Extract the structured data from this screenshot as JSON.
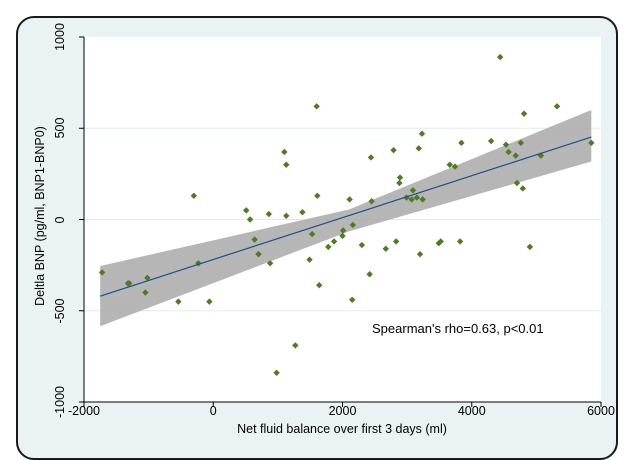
{
  "chart_data": {
    "type": "scatter",
    "xlabel": "Net fluid balance over first 3 days (ml)",
    "ylabel": "Deltla BNP (pg/ml, BNP1-BNP0)",
    "xlim": [
      -2000,
      6000
    ],
    "ylim": [
      -1000,
      1000
    ],
    "xticks": [
      -2000,
      0,
      2000,
      4000,
      6000
    ],
    "yticks": [
      -1000,
      -500,
      0,
      500,
      1000
    ],
    "xtick_labels": [
      "-2000",
      "0",
      "2000",
      "4000",
      "6000"
    ],
    "ytick_labels": [
      "-1000",
      "-500",
      "0",
      "500",
      "1000"
    ],
    "grid": true,
    "annotation": "Spearman's rho=0.63, p<0.01",
    "regression_line": {
      "x": [
        -1750,
        5850
      ],
      "y": [
        -420,
        452
      ]
    },
    "confidence_band": {
      "x": [
        -1750,
        2100,
        5850
      ],
      "lower": [
        -585,
        -65,
        318
      ],
      "upper": [
        -255,
        55,
        600
      ]
    },
    "points": {
      "x": [
        -1720,
        -1300,
        -1320,
        -1050,
        -1020,
        -540,
        -300,
        -230,
        -60,
        510,
        570,
        640,
        700,
        860,
        880,
        980,
        1130,
        1100,
        1130,
        1270,
        1380,
        1490,
        1530,
        1610,
        1600,
        1640,
        1780,
        1870,
        2010,
        2000,
        2110,
        2150,
        2160,
        2300,
        2420,
        2440,
        2450,
        2670,
        2790,
        2830,
        2880,
        2890,
        2990,
        3070,
        3090,
        3150,
        3180,
        3200,
        3230,
        3240,
        3490,
        3520,
        3660,
        3740,
        3820,
        3840,
        4300,
        4440,
        4530,
        4570,
        4680,
        4700,
        4760,
        4790,
        4810,
        4900,
        5070,
        5320,
        5850
      ],
      "y": [
        -290,
        -350,
        -350,
        -400,
        -320,
        -450,
        130,
        -240,
        -450,
        50,
        0,
        -110,
        -190,
        30,
        -240,
        -840,
        20,
        370,
        300,
        -690,
        40,
        -220,
        -80,
        130,
        620,
        -360,
        -150,
        -120,
        -60,
        -90,
        110,
        -440,
        -30,
        -140,
        -300,
        340,
        100,
        -160,
        380,
        -120,
        200,
        230,
        120,
        110,
        160,
        120,
        390,
        -190,
        470,
        110,
        -130,
        -120,
        300,
        290,
        -120,
        420,
        430,
        890,
        410,
        370,
        350,
        200,
        420,
        170,
        580,
        -150,
        350,
        620,
        420
      ]
    }
  }
}
